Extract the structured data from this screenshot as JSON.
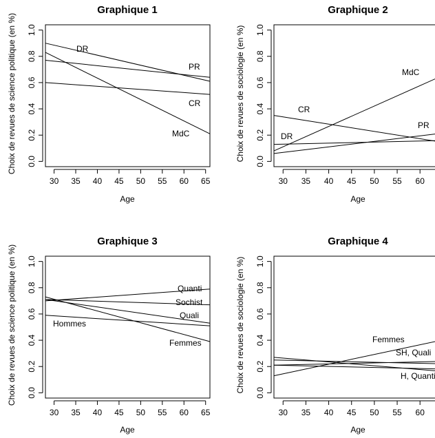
{
  "chart_data": [
    {
      "type": "line",
      "title": "Graphique 1",
      "xlabel": "Age",
      "ylabel": "Choix de revues de science politique (en %)",
      "xlim": [
        28,
        66
      ],
      "ylim": [
        -0.04,
        1.04
      ],
      "xticks": [
        "30",
        "35",
        "40",
        "45",
        "50",
        "55",
        "60",
        "65"
      ],
      "yticks": [
        "0.0",
        "0.2",
        "0.4",
        "0.6",
        "0.8",
        "1.0"
      ],
      "series": [
        {
          "name": "DR",
          "x": [
            28,
            66
          ],
          "y": [
            0.9,
            0.61
          ]
        },
        {
          "name": "PR",
          "x": [
            28,
            66
          ],
          "y": [
            0.77,
            0.64
          ]
        },
        {
          "name": "CR",
          "x": [
            28,
            66
          ],
          "y": [
            0.6,
            0.51
          ]
        },
        {
          "name": "MdC",
          "x": [
            28,
            66
          ],
          "y": [
            0.83,
            0.21
          ]
        }
      ]
    },
    {
      "type": "line",
      "title": "Graphique 2",
      "xlabel": "Age",
      "ylabel": "Choix de revues de sociologie (en %)",
      "xlim": [
        28,
        66
      ],
      "ylim": [
        -0.04,
        1.04
      ],
      "xticks": [
        "30",
        "35",
        "40",
        "45",
        "50",
        "55",
        "60",
        "65"
      ],
      "yticks": [
        "0.0",
        "0.2",
        "0.4",
        "0.6",
        "0.8",
        "1.0"
      ],
      "series": [
        {
          "name": "MdC",
          "x": [
            28,
            66
          ],
          "y": [
            0.08,
            0.67
          ]
        },
        {
          "name": "CR",
          "x": [
            28,
            66
          ],
          "y": [
            0.35,
            0.14
          ]
        },
        {
          "name": "PR",
          "x": [
            28,
            66
          ],
          "y": [
            0.06,
            0.22
          ]
        },
        {
          "name": "DR",
          "x": [
            28,
            66
          ],
          "y": [
            0.13,
            0.16
          ]
        }
      ]
    },
    {
      "type": "line",
      "title": "Graphique 3",
      "xlabel": "Age",
      "ylabel": "Choix de revues de science politique (en %)",
      "xlim": [
        28,
        66
      ],
      "ylim": [
        -0.04,
        1.04
      ],
      "xticks": [
        "30",
        "35",
        "40",
        "45",
        "50",
        "55",
        "60",
        "65"
      ],
      "yticks": [
        "0.0",
        "0.2",
        "0.4",
        "0.6",
        "0.8",
        "1.0"
      ],
      "series": [
        {
          "name": "Quanti",
          "x": [
            28,
            66
          ],
          "y": [
            0.7,
            0.79
          ]
        },
        {
          "name": "Sochist",
          "x": [
            28,
            66
          ],
          "y": [
            0.71,
            0.67
          ]
        },
        {
          "name": "Quali",
          "x": [
            28,
            66
          ],
          "y": [
            0.71,
            0.53
          ]
        },
        {
          "name": "Hommes",
          "x": [
            28,
            66
          ],
          "y": [
            0.59,
            0.51
          ]
        },
        {
          "name": "Femmes",
          "x": [
            28,
            66
          ],
          "y": [
            0.73,
            0.39
          ]
        }
      ]
    },
    {
      "type": "line",
      "title": "Graphique 4",
      "xlabel": "Age",
      "ylabel": "Choix de revues de sociologie (en %)",
      "xlim": [
        28,
        66
      ],
      "ylim": [
        -0.04,
        1.04
      ],
      "xticks": [
        "30",
        "35",
        "40",
        "45",
        "50",
        "55",
        "60",
        "65"
      ],
      "yticks": [
        "0.0",
        "0.2",
        "0.4",
        "0.6",
        "0.8",
        "1.0"
      ],
      "series": [
        {
          "name": "Femmes",
          "x": [
            28,
            66
          ],
          "y": [
            0.13,
            0.41
          ]
        },
        {
          "name": "SH, Quali",
          "x": [
            28,
            66
          ],
          "y": [
            0.25,
            0.22
          ]
        },
        {
          "name": "H, Quanti",
          "x": [
            28,
            66
          ],
          "y": [
            0.27,
            0.16
          ]
        },
        {
          "name": "",
          "x": [
            28,
            66
          ],
          "y": [
            0.21,
            0.24
          ]
        },
        {
          "name": "",
          "x": [
            28,
            66
          ],
          "y": [
            0.21,
            0.18
          ]
        }
      ]
    }
  ]
}
